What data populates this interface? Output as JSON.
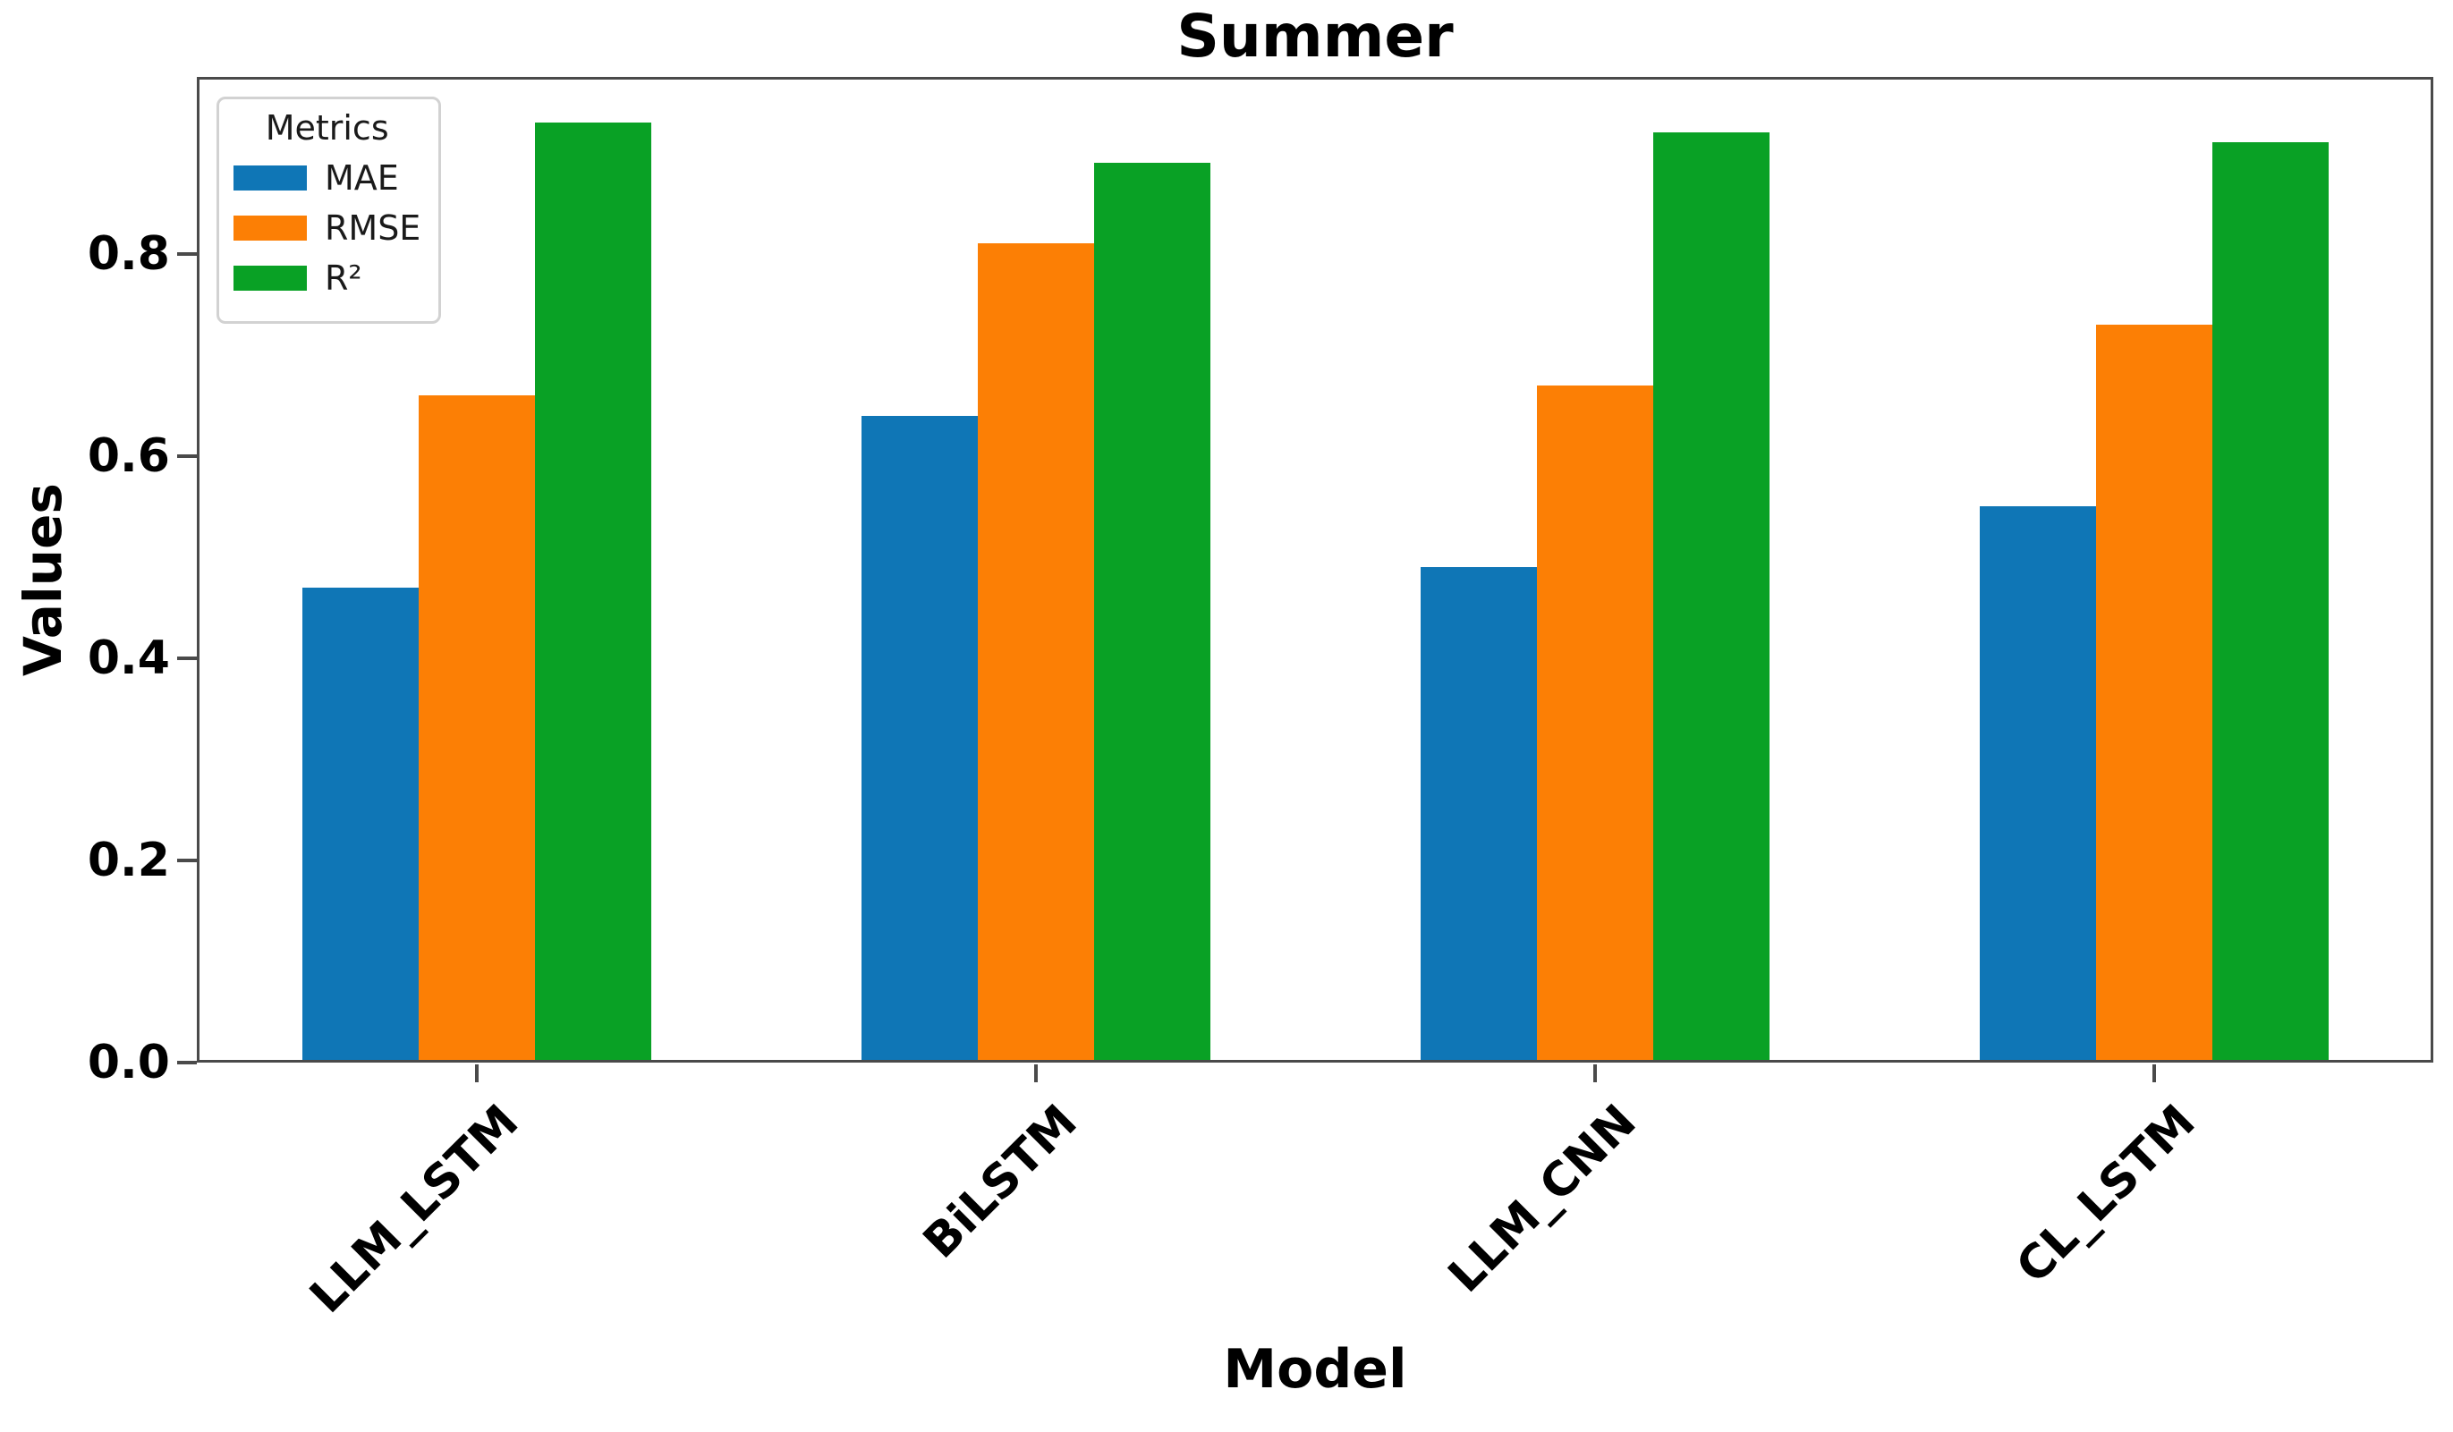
{
  "chart_data": {
    "type": "bar",
    "title": "Summer",
    "xlabel": "Model",
    "ylabel": "Values",
    "categories": [
      "LLM_LSTM",
      "BiLSTM",
      "LLM_CNN",
      "CL_LSTM"
    ],
    "series": [
      {
        "name": "MAE",
        "color": "#0f76b6",
        "values": [
          0.47,
          0.64,
          0.49,
          0.55
        ]
      },
      {
        "name": "RMSE",
        "color": "#fc7f05",
        "values": [
          0.66,
          0.81,
          0.67,
          0.73
        ]
      },
      {
        "name": "R²",
        "color": "#09a125",
        "values": [
          0.93,
          0.89,
          0.92,
          0.91
        ]
      }
    ],
    "ylim": [
      0,
      0.975
    ],
    "yticks": [
      0.0,
      0.2,
      0.4,
      0.6,
      0.8
    ],
    "ytick_labels": [
      "0.0",
      "0.2",
      "0.4",
      "0.6",
      "0.8"
    ],
    "grid": false,
    "legend": {
      "title": "Metrics",
      "position": "upper left"
    },
    "x_tick_rotation": 45,
    "bar_width_frac_of_group": 0.208
  }
}
